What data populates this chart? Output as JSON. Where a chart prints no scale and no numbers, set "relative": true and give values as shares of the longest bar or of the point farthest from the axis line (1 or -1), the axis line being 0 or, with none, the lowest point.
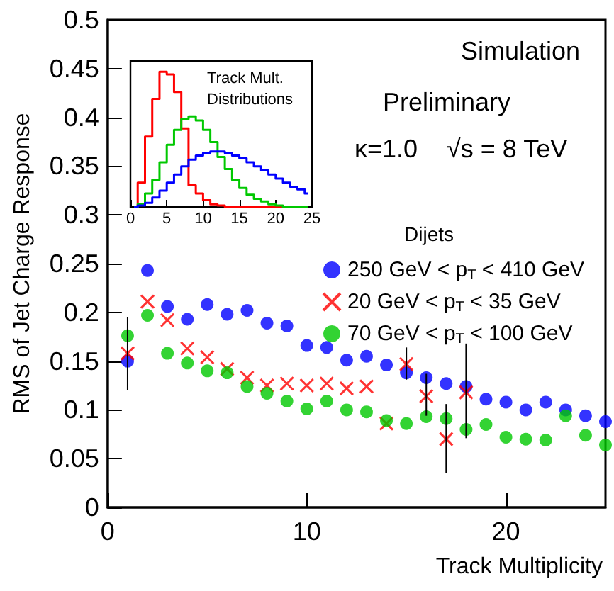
{
  "chart_data": [
    {
      "type": "scatter",
      "xlabel": "Track Multiplicity",
      "ylabel": "RMS of Jet Charge Response",
      "legend_title": "Dijets",
      "legend": "right",
      "annotations": [
        "Simulation",
        "Preliminary",
        "κ=1.0",
        "√s = 8 TeV"
      ],
      "x": [
        1,
        2,
        3,
        4,
        5,
        6,
        7,
        8,
        9,
        10,
        11,
        12,
        13,
        14,
        15,
        16,
        17,
        18,
        19,
        20,
        21,
        22,
        23,
        24,
        25
      ],
      "xlim": [
        0,
        25
      ],
      "xticks": [
        0,
        10,
        20
      ],
      "ylim": [
        0,
        0.5
      ],
      "yticks": [
        0,
        0.05,
        0.1,
        0.15,
        0.2,
        0.25,
        0.3,
        0.35,
        0.4,
        0.45,
        0.5
      ],
      "series": [
        {
          "name": "250 GeV < p$_{T}$ < 410 GeV",
          "color": "#0000ff",
          "marker": "circle",
          "values": [
            0.15,
            0.243,
            0.206,
            0.193,
            0.208,
            0.198,
            0.202,
            0.189,
            0.186,
            0.166,
            0.164,
            0.151,
            0.155,
            0.146,
            0.138,
            0.133,
            0.127,
            0.124,
            0.111,
            0.108,
            0.1,
            0.108,
            0.1,
            0.094,
            0.088
          ]
        },
        {
          "name": "20 GeV < p$_{T}$ < 35 GeV",
          "color": "#ff0000",
          "marker": "cross",
          "x": [
            1,
            2,
            3,
            4,
            5,
            6,
            7,
            8,
            9,
            10,
            11,
            12,
            13,
            14,
            15,
            16,
            17,
            18
          ],
          "values": [
            0.158,
            0.211,
            0.192,
            0.163,
            0.154,
            0.142,
            0.133,
            0.125,
            0.127,
            0.125,
            0.127,
            0.122,
            0.124,
            0.086,
            0.147,
            0.114,
            0.07,
            0.118
          ],
          "errors": [
            [
              0.12,
              0.195
            ],
            null,
            null,
            null,
            null,
            null,
            null,
            null,
            null,
            null,
            null,
            null,
            null,
            null,
            [
              0.131,
              0.164
            ],
            [
              0.094,
              0.137
            ],
            [
              0.035,
              0.106
            ],
            [
              0.071,
              0.168
            ]
          ]
        },
        {
          "name": "70 GeV < p$_{T}$ < 100 GeV",
          "color": "#00c800",
          "marker": "circle",
          "values": [
            0.176,
            0.197,
            0.158,
            0.148,
            0.14,
            0.138,
            0.124,
            0.117,
            0.109,
            0.101,
            0.109,
            0.1,
            0.098,
            0.089,
            0.086,
            0.093,
            0.091,
            0.08,
            0.085,
            0.072,
            0.07,
            0.069,
            0.094,
            0.074,
            0.064
          ]
        }
      ]
    },
    {
      "type": "step",
      "title": "Track Mult. Distributions",
      "relative": true,
      "x": [
        0.5,
        1.5,
        2.5,
        3.5,
        4.5,
        5.5,
        6.5,
        7.5,
        8.5,
        9.5,
        10.5,
        11.5,
        12.5,
        13.5,
        14.5,
        15.5,
        16.5,
        17.5,
        18.5,
        19.5,
        20.5,
        21.5,
        22.5,
        23.5,
        24.5
      ],
      "xlim": [
        0,
        25
      ],
      "xticks": [
        0,
        5,
        10,
        15,
        20,
        25
      ],
      "series": [
        {
          "color": "#ff0000",
          "values": [
            0,
            0.18,
            0.52,
            0.8,
            1,
            0.98,
            0.85,
            0.58,
            0.16,
            0.1,
            0.05,
            0.02,
            0.01,
            0,
            0,
            0,
            0,
            0,
            0,
            0,
            0,
            0,
            0,
            null,
            null
          ]
        },
        {
          "color": "#00c800",
          "values": [
            0,
            0.02,
            0.1,
            0.2,
            0.33,
            0.46,
            0.57,
            0.65,
            0.67,
            0.64,
            0.57,
            0.48,
            0.37,
            0.28,
            0.2,
            0.14,
            0.09,
            0.06,
            0.04,
            0.02,
            0.01,
            0,
            0,
            0,
            0
          ]
        },
        {
          "color": "#0000ff",
          "values": [
            0,
            0.01,
            0.03,
            0.07,
            0.12,
            0.18,
            0.24,
            0.3,
            0.35,
            0.38,
            0.4,
            0.41,
            0.41,
            0.4,
            0.38,
            0.36,
            0.33,
            0.3,
            0.27,
            0.24,
            0.21,
            0.18,
            0.15,
            0.13,
            0.1
          ]
        }
      ]
    }
  ]
}
